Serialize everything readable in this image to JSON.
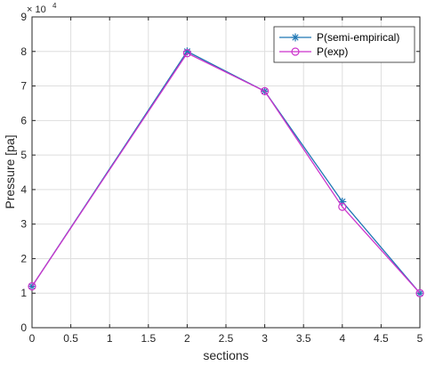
{
  "chart_data": {
    "type": "line",
    "xlabel": "sections",
    "ylabel": "Pressure  [pa]",
    "y_multiplier_base": "× 10",
    "y_multiplier_exponent": "4",
    "xlim": [
      0,
      5
    ],
    "ylim": [
      0,
      9
    ],
    "x_ticks": [
      0,
      0.5,
      1,
      1.5,
      2,
      2.5,
      3,
      3.5,
      4,
      4.5,
      5
    ],
    "x_tick_labels": [
      "0",
      "0.5",
      "1",
      "1.5",
      "2",
      "2.5",
      "3",
      "3.5",
      "4",
      "4.5",
      "5"
    ],
    "y_ticks": [
      0,
      1,
      2,
      3,
      4,
      5,
      6,
      7,
      8,
      9
    ],
    "y_tick_labels": [
      "0",
      "1",
      "2",
      "3",
      "4",
      "5",
      "6",
      "7",
      "8",
      "9"
    ],
    "grid": true,
    "legend_position": "top-right",
    "x": [
      0,
      2,
      3,
      4,
      5
    ],
    "series": [
      {
        "name": "P(semi-empirical)",
        "values": [
          1.2,
          8.0,
          6.85,
          3.65,
          1.0
        ],
        "color": "#1f77b4",
        "marker": "asterisk"
      },
      {
        "name": "P(exp)",
        "values": [
          1.2,
          7.95,
          6.85,
          3.5,
          1.0
        ],
        "color": "#cc33cc",
        "marker": "circle"
      }
    ]
  }
}
